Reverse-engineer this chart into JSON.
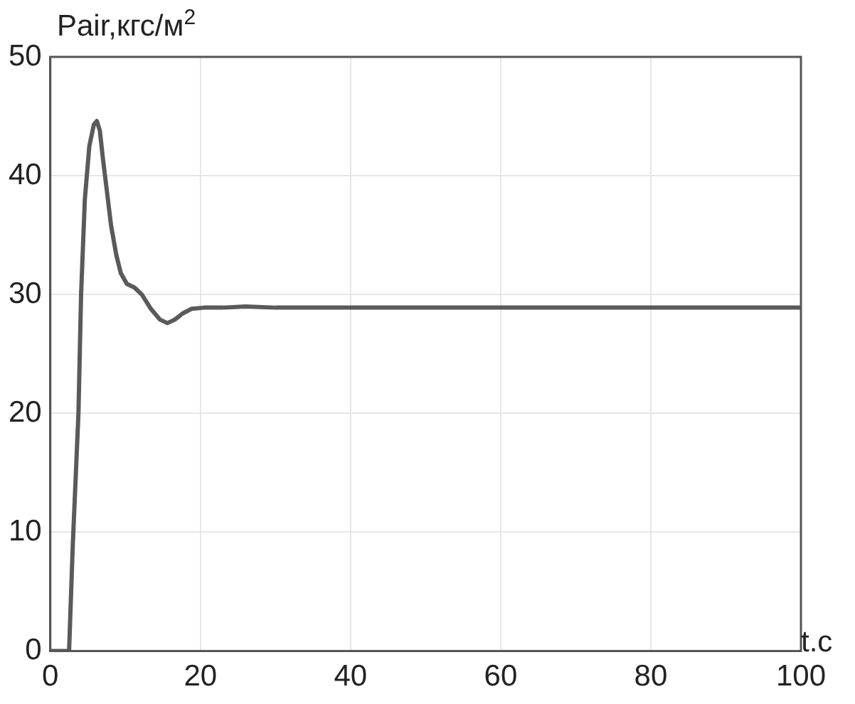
{
  "chart_data": {
    "type": "line",
    "ylabel": "Pair,кгс/м$^{2}$",
    "xlabel": "t.c",
    "series": [
      {
        "color": "#5a5a5a",
        "x": [
          0,
          1,
          2,
          2.5,
          3,
          3.75,
          4.1,
          4.6,
          5.2,
          5.8,
          6.2,
          6.6,
          7.0,
          7.5,
          8.1,
          8.8,
          9.4,
          10.2,
          11.2,
          12.2,
          13.4,
          14.6,
          15.6,
          16.6,
          17.6,
          18.8,
          20.5,
          23,
          26,
          30,
          40,
          60,
          80,
          100
        ],
        "values": [
          0,
          0,
          0,
          0,
          9,
          20,
          30,
          38,
          42.5,
          44.3,
          44.6,
          43.8,
          41.5,
          38.9,
          35.8,
          33.3,
          31.8,
          30.9,
          30.6,
          30.0,
          28.8,
          27.9,
          27.6,
          27.9,
          28.4,
          28.8,
          28.9,
          28.9,
          29.0,
          28.9,
          28.9,
          28.9,
          28.9,
          28.9
        ]
      }
    ],
    "xlim": [
      0,
      100
    ],
    "xticks": [
      0,
      20,
      40,
      60,
      80,
      100
    ],
    "ylim": [
      0,
      50
    ],
    "yticks": [
      0,
      10,
      20,
      30,
      40,
      50
    ],
    "grid": true,
    "legend": false,
    "marker": "none",
    "line_style": "solid"
  }
}
